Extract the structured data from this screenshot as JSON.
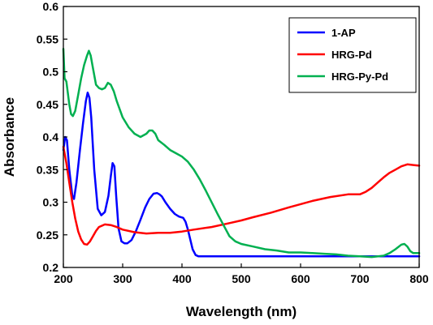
{
  "chart_data": {
    "type": "line",
    "title": "",
    "xlabel": "Wavelength (nm)",
    "ylabel": "Absorbance",
    "xlim": [
      200,
      800
    ],
    "ylim": [
      0.2,
      0.6
    ],
    "xticks": [
      200,
      300,
      400,
      500,
      600,
      700,
      800
    ],
    "yticks": [
      0.2,
      0.25,
      0.3,
      0.35,
      0.4,
      0.45,
      0.5,
      0.55,
      0.6
    ],
    "grid": false,
    "legend_position": "top-right",
    "series": [
      {
        "name": "1-AP",
        "color": "#0000ff",
        "x": [
          200,
          203,
          206,
          210,
          215,
          218,
          222,
          228,
          233,
          238,
          241,
          244,
          247,
          252,
          258,
          264,
          270,
          276,
          280,
          283,
          286,
          289,
          293,
          298,
          303,
          308,
          315,
          322,
          330,
          338,
          345,
          352,
          358,
          362,
          366,
          372,
          380,
          388,
          395,
          402,
          406,
          410,
          414,
          418,
          423,
          428,
          432,
          440,
          460,
          500,
          550,
          600,
          650,
          700,
          750,
          800
        ],
        "y": [
          0.38,
          0.4,
          0.395,
          0.35,
          0.31,
          0.305,
          0.33,
          0.38,
          0.42,
          0.455,
          0.468,
          0.46,
          0.43,
          0.35,
          0.29,
          0.28,
          0.285,
          0.31,
          0.34,
          0.36,
          0.355,
          0.31,
          0.26,
          0.24,
          0.237,
          0.237,
          0.242,
          0.255,
          0.273,
          0.292,
          0.305,
          0.313,
          0.314,
          0.312,
          0.309,
          0.3,
          0.29,
          0.282,
          0.278,
          0.276,
          0.27,
          0.258,
          0.243,
          0.228,
          0.219,
          0.217,
          0.217,
          0.217,
          0.217,
          0.217,
          0.217,
          0.217,
          0.217,
          0.217,
          0.217,
          0.217
        ]
      },
      {
        "name": "HRG-Pd",
        "color": "#ff0000",
        "x": [
          200,
          205,
          210,
          215,
          220,
          225,
          230,
          235,
          240,
          245,
          250,
          255,
          260,
          270,
          280,
          290,
          300,
          320,
          340,
          360,
          380,
          400,
          420,
          450,
          480,
          500,
          520,
          550,
          580,
          600,
          620,
          650,
          680,
          700,
          710,
          720,
          730,
          740,
          750,
          760,
          770,
          780,
          790,
          800
        ],
        "y": [
          0.385,
          0.36,
          0.33,
          0.3,
          0.275,
          0.255,
          0.243,
          0.236,
          0.235,
          0.24,
          0.248,
          0.256,
          0.262,
          0.266,
          0.265,
          0.262,
          0.258,
          0.254,
          0.252,
          0.253,
          0.253,
          0.255,
          0.258,
          0.262,
          0.268,
          0.272,
          0.277,
          0.284,
          0.292,
          0.297,
          0.302,
          0.308,
          0.312,
          0.312,
          0.316,
          0.322,
          0.33,
          0.338,
          0.345,
          0.35,
          0.355,
          0.358,
          0.357,
          0.356
        ]
      },
      {
        "name": "HRG-Py-Pd",
        "color": "#00b050",
        "x": [
          200,
          202,
          205,
          210,
          213,
          216,
          220,
          225,
          230,
          235,
          240,
          243,
          246,
          250,
          255,
          260,
          265,
          270,
          275,
          280,
          285,
          290,
          300,
          310,
          320,
          330,
          340,
          345,
          350,
          355,
          360,
          370,
          380,
          390,
          400,
          410,
          420,
          430,
          440,
          450,
          460,
          470,
          480,
          490,
          500,
          520,
          540,
          560,
          580,
          600,
          620,
          640,
          660,
          680,
          700,
          720,
          740,
          750,
          760,
          770,
          775,
          780,
          785,
          790,
          800
        ],
        "y": [
          0.535,
          0.49,
          0.485,
          0.45,
          0.435,
          0.432,
          0.44,
          0.465,
          0.49,
          0.51,
          0.525,
          0.532,
          0.525,
          0.505,
          0.48,
          0.475,
          0.473,
          0.475,
          0.483,
          0.48,
          0.47,
          0.455,
          0.43,
          0.415,
          0.405,
          0.4,
          0.405,
          0.41,
          0.41,
          0.405,
          0.395,
          0.388,
          0.38,
          0.375,
          0.37,
          0.362,
          0.35,
          0.335,
          0.318,
          0.3,
          0.282,
          0.265,
          0.248,
          0.24,
          0.236,
          0.232,
          0.228,
          0.226,
          0.223,
          0.223,
          0.222,
          0.221,
          0.22,
          0.218,
          0.217,
          0.216,
          0.218,
          0.222,
          0.228,
          0.235,
          0.236,
          0.232,
          0.225,
          0.222,
          0.222
        ]
      }
    ]
  }
}
